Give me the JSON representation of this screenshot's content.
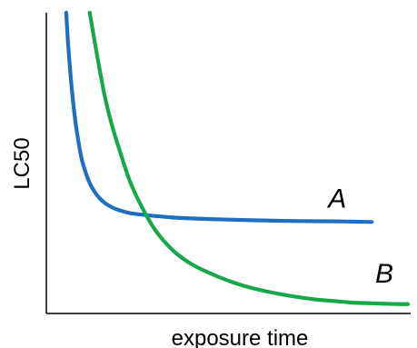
{
  "chart_data": {
    "type": "line",
    "xlabel": "exposure time",
    "ylabel": "LC50",
    "xlim": [
      0,
      10
    ],
    "ylim": [
      0,
      10
    ],
    "grid": false,
    "legend": "none",
    "series": [
      {
        "name": "A",
        "color": "#1f6fc0",
        "x": [
          0.55,
          0.6,
          0.7,
          0.8,
          0.9,
          1.0,
          1.2,
          1.4,
          1.6,
          1.8,
          2.0,
          2.3,
          2.6,
          3.0,
          3.5,
          4.0,
          5.0,
          6.0,
          7.0,
          8.0,
          9.0
        ],
        "y": [
          10.0,
          9.0,
          7.5,
          6.4,
          5.6,
          5.0,
          4.3,
          3.9,
          3.65,
          3.5,
          3.4,
          3.3,
          3.25,
          3.2,
          3.15,
          3.12,
          3.08,
          3.05,
          3.03,
          3.02,
          3.0
        ]
      },
      {
        "name": "B",
        "color": "#17a84c",
        "x": [
          1.2,
          1.4,
          1.6,
          1.8,
          2.0,
          2.3,
          2.6,
          3.0,
          3.5,
          4.0,
          4.5,
          5.0,
          5.5,
          6.0,
          6.5,
          7.0,
          7.5,
          8.0,
          8.5,
          9.0,
          9.5,
          10.0
        ],
        "y": [
          10.0,
          8.6,
          7.3,
          6.3,
          5.5,
          4.4,
          3.6,
          2.75,
          2.05,
          1.6,
          1.3,
          1.05,
          0.85,
          0.7,
          0.58,
          0.48,
          0.4,
          0.35,
          0.3,
          0.28,
          0.26,
          0.25
        ]
      }
    ]
  }
}
